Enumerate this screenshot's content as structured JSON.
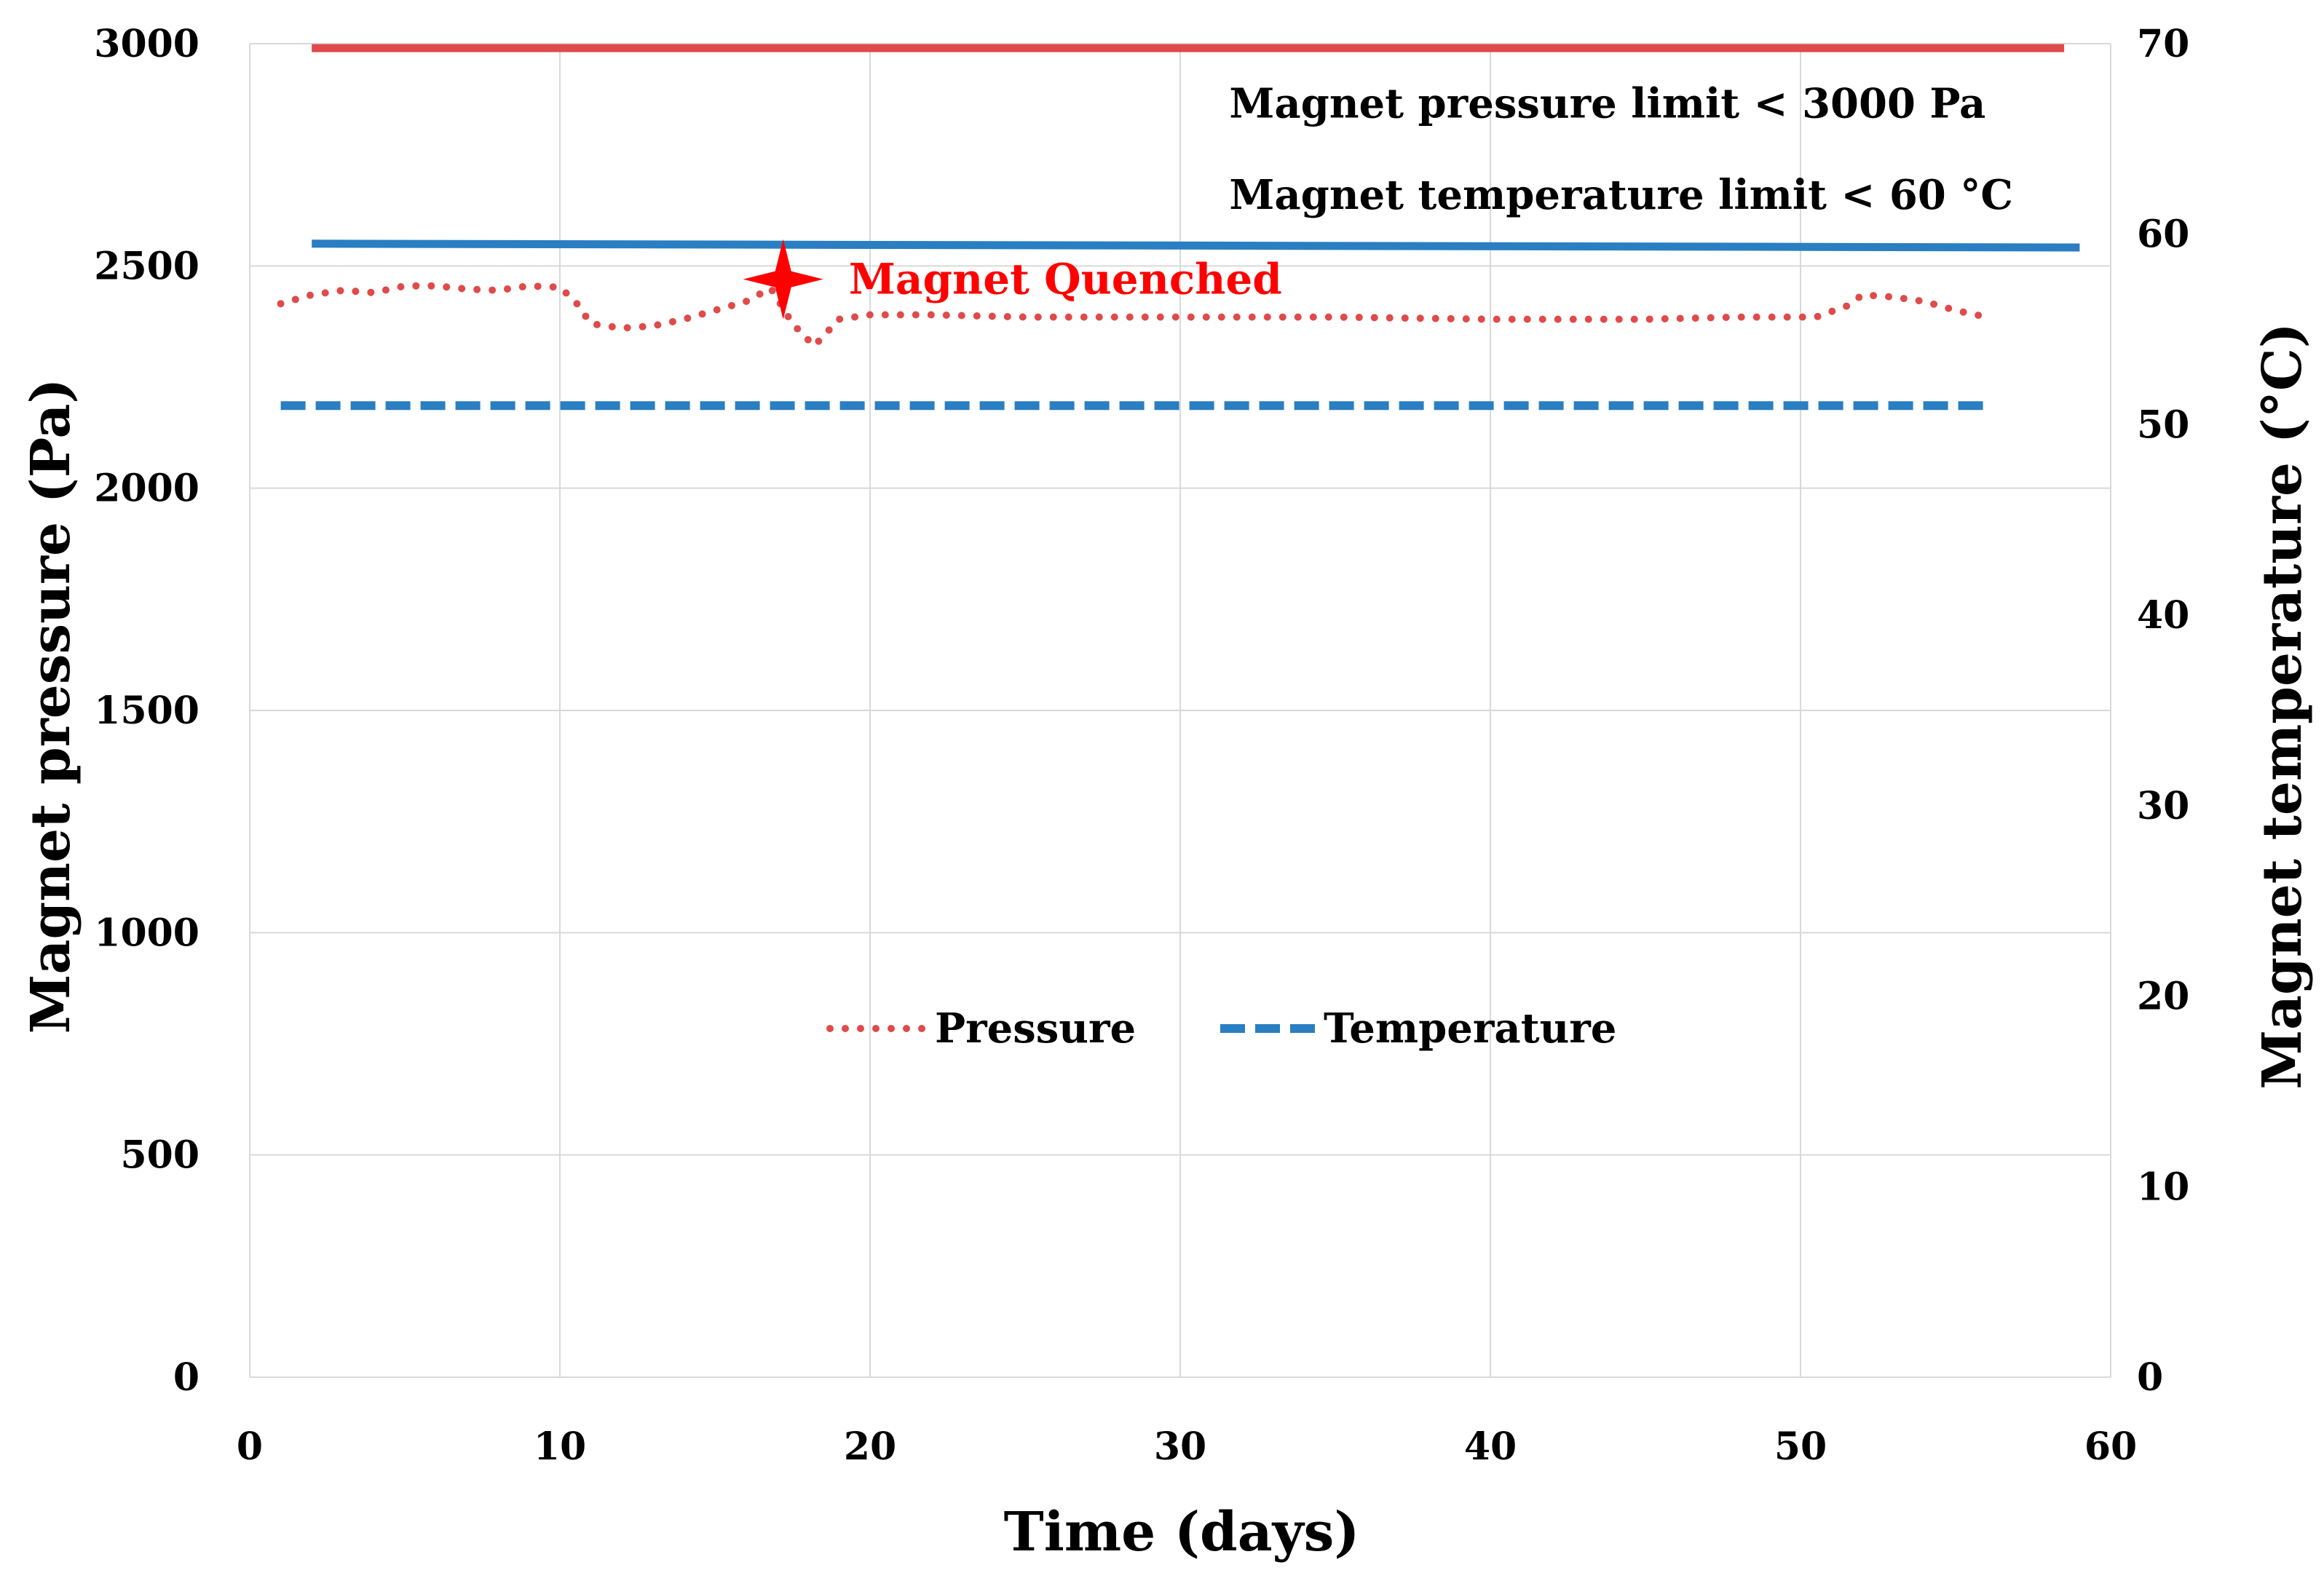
{
  "chart_data": {
    "type": "line",
    "xlabel": "Time (days)",
    "ylabel": "Magnet pressure (Pa)",
    "y2label": "Magnet temperature (°C)",
    "xlim": [
      0,
      60
    ],
    "ylim": [
      0,
      3000
    ],
    "y2lim": [
      0,
      70
    ],
    "x_ticks": [
      "0",
      "10",
      "20",
      "30",
      "40",
      "50",
      "60"
    ],
    "y_ticks": [
      "0",
      "500",
      "1000",
      "1500",
      "2000",
      "2500",
      "3000"
    ],
    "y2_ticks": [
      "0",
      "10",
      "20",
      "30",
      "40",
      "50",
      "60",
      "70"
    ],
    "grid": true,
    "series": [
      {
        "name": "Pressure",
        "axis": "left",
        "style": "dotted",
        "color": "#e04a4a",
        "x": [
          1,
          2,
          3,
          4,
          5,
          6,
          7,
          8,
          9,
          10,
          10.5,
          11,
          12,
          13,
          14,
          15,
          16,
          16.8,
          17.5,
          18.2,
          19,
          20,
          22,
          25,
          30,
          35,
          40,
          45,
          48,
          50.5,
          51.5,
          52,
          53,
          54,
          55,
          56
        ],
        "values": [
          2415,
          2435,
          2445,
          2440,
          2455,
          2455,
          2448,
          2445,
          2455,
          2452,
          2420,
          2370,
          2360,
          2365,
          2380,
          2400,
          2420,
          2450,
          2370,
          2320,
          2380,
          2390,
          2390,
          2385,
          2385,
          2385,
          2380,
          2380,
          2385,
          2385,
          2410,
          2435,
          2430,
          2420,
          2400,
          2385
        ]
      },
      {
        "name": "Temperature",
        "axis": "right",
        "style": "dashed",
        "color": "#2a7ec2",
        "x": [
          1,
          56
        ],
        "values": [
          51,
          51
        ]
      },
      {
        "name": "Magnet pressure limit",
        "axis": "left",
        "style": "solid",
        "color": "#e04a4a",
        "x": [
          2,
          58.5
        ],
        "values": [
          2990,
          2990
        ]
      },
      {
        "name": "Magnet temperature limit",
        "axis": "right",
        "style": "solid",
        "color": "#2a7ec2",
        "x": [
          2,
          59
        ],
        "values": [
          59.5,
          59.3
        ]
      }
    ],
    "annotations": [
      {
        "text": "Magnet pressure limit < 3000 Pa",
        "x": 34,
        "y": 2850
      },
      {
        "text": "Magnet temperature limit < 60 °C",
        "x": 34,
        "y": 2645
      }
    ],
    "event": {
      "label": "Magnet Quenched",
      "x": 17.2,
      "y": 2470,
      "color": "#ff0000"
    },
    "legend": {
      "placement": "center",
      "entries": [
        "Pressure",
        "Temperature"
      ]
    }
  }
}
